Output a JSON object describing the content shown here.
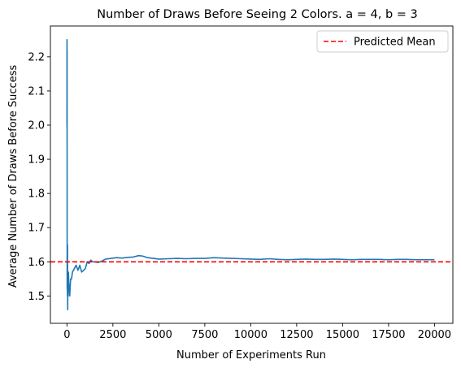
{
  "chart_data": {
    "type": "line",
    "title": "Number of Draws Before Seeing 2 Colors. a = 4, b = 3",
    "xlabel": "Number of Experiments Run",
    "ylabel": "Average Number of Draws Before Success",
    "xlim": [
      -900,
      21000
    ],
    "ylim": [
      1.42,
      2.29
    ],
    "xticks": [
      0,
      2500,
      5000,
      7500,
      10000,
      12500,
      15000,
      17500,
      20000
    ],
    "xtick_labels": [
      "0",
      "2500",
      "5000",
      "7500",
      "10000",
      "12500",
      "15000",
      "17500",
      "20000"
    ],
    "yticks": [
      1.5,
      1.6,
      1.7,
      1.8,
      1.9,
      2.0,
      2.1,
      2.2
    ],
    "ytick_labels": [
      "1.5",
      "1.6",
      "1.7",
      "1.8",
      "1.9",
      "2.0",
      "2.1",
      "2.2"
    ],
    "grid": false,
    "legend_position": "top-right",
    "series": [
      {
        "name": "",
        "color": "#1f77b4",
        "style": "solid",
        "points": [
          [
            1,
            2.0
          ],
          [
            3,
            2.25
          ],
          [
            5,
            1.99
          ],
          [
            8,
            2.22
          ],
          [
            10,
            1.7
          ],
          [
            12,
            1.52
          ],
          [
            15,
            1.58
          ],
          [
            20,
            1.63
          ],
          [
            25,
            1.5
          ],
          [
            30,
            1.65
          ],
          [
            40,
            1.46
          ],
          [
            50,
            1.55
          ],
          [
            60,
            1.5
          ],
          [
            80,
            1.57
          ],
          [
            100,
            1.54
          ],
          [
            150,
            1.5
          ],
          [
            200,
            1.55
          ],
          [
            250,
            1.55
          ],
          [
            300,
            1.57
          ],
          [
            400,
            1.58
          ],
          [
            500,
            1.59
          ],
          [
            600,
            1.575
          ],
          [
            700,
            1.59
          ],
          [
            800,
            1.57
          ],
          [
            900,
            1.575
          ],
          [
            1000,
            1.58
          ],
          [
            1100,
            1.6
          ],
          [
            1200,
            1.595
          ],
          [
            1300,
            1.605
          ],
          [
            1400,
            1.6
          ],
          [
            1500,
            1.6
          ],
          [
            1700,
            1.598
          ],
          [
            1900,
            1.602
          ],
          [
            2100,
            1.608
          ],
          [
            2400,
            1.61
          ],
          [
            2700,
            1.612
          ],
          [
            3000,
            1.611
          ],
          [
            3300,
            1.613
          ],
          [
            3600,
            1.614
          ],
          [
            3900,
            1.618
          ],
          [
            4100,
            1.617
          ],
          [
            4400,
            1.612
          ],
          [
            4700,
            1.61
          ],
          [
            5000,
            1.608
          ],
          [
            5500,
            1.609
          ],
          [
            6000,
            1.61
          ],
          [
            6500,
            1.609
          ],
          [
            7000,
            1.61
          ],
          [
            7500,
            1.61
          ],
          [
            8000,
            1.612
          ],
          [
            8500,
            1.611
          ],
          [
            9000,
            1.61
          ],
          [
            9500,
            1.609
          ],
          [
            10000,
            1.608
          ],
          [
            10500,
            1.607
          ],
          [
            11000,
            1.609
          ],
          [
            11500,
            1.607
          ],
          [
            12000,
            1.606
          ],
          [
            12500,
            1.607
          ],
          [
            13000,
            1.608
          ],
          [
            13500,
            1.607
          ],
          [
            14000,
            1.607
          ],
          [
            14500,
            1.608
          ],
          [
            15000,
            1.607
          ],
          [
            15500,
            1.606
          ],
          [
            16000,
            1.607
          ],
          [
            16500,
            1.607
          ],
          [
            17000,
            1.607
          ],
          [
            17500,
            1.606
          ],
          [
            18000,
            1.607
          ],
          [
            18500,
            1.607
          ],
          [
            19000,
            1.606
          ],
          [
            19500,
            1.606
          ],
          [
            20000,
            1.606
          ]
        ]
      }
    ],
    "reference_lines": [
      {
        "name": "Predicted Mean",
        "orientation": "horizontal",
        "value": 1.6,
        "color": "#ff0000",
        "style": "dashed"
      }
    ],
    "legend": [
      {
        "label": "Predicted Mean",
        "color": "#ff0000",
        "style": "dashed"
      }
    ]
  }
}
